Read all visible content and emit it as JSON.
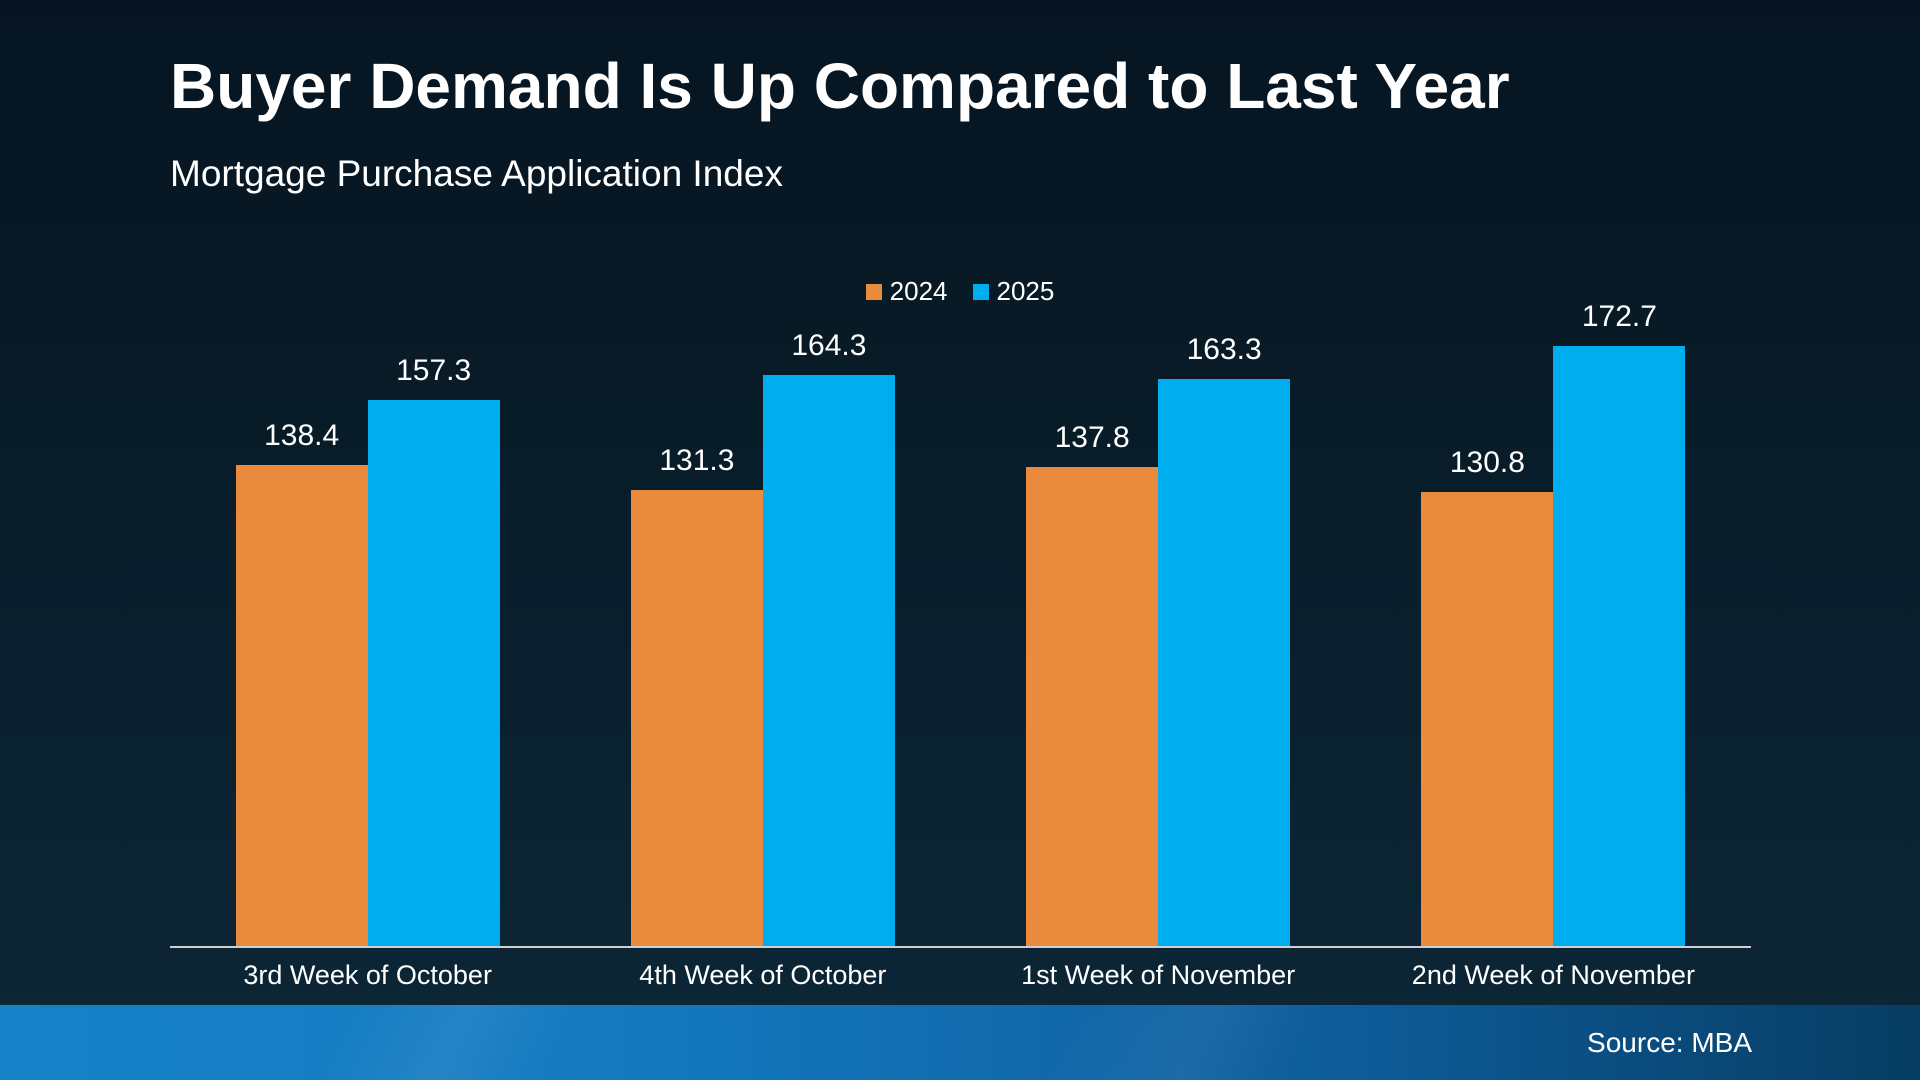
{
  "header": {
    "title": "Buyer Demand Is Up Compared to Last Year",
    "subtitle": "Mortgage Purchase Application Index"
  },
  "footer": {
    "source": "Source: MBA"
  },
  "colors": {
    "series_2024": "#E98A3C",
    "series_2025": "#00AEEF",
    "background_top": "#061521",
    "background_bottom": "#0D2736",
    "axis_line": "#CDD0D3",
    "text": "#FFFFFF",
    "band_left": "#1682C8",
    "band_right": "#073D63"
  },
  "chart_data": {
    "type": "bar",
    "title": "Buyer Demand Is Up Compared to Last Year",
    "subtitle": "Mortgage Purchase Application Index",
    "categories": [
      "3rd Week of October",
      "4th Week of October",
      "1st Week of November",
      "2nd Week of November"
    ],
    "series": [
      {
        "name": "2024",
        "color": "#E98A3C",
        "values": [
          138.4,
          131.3,
          137.8,
          130.8
        ]
      },
      {
        "name": "2025",
        "color": "#00AEEF",
        "values": [
          157.3,
          164.3,
          163.3,
          172.7
        ]
      }
    ],
    "ylim": [
      0,
      180
    ],
    "baseline": 0,
    "grid": false,
    "value_labels": true,
    "legend_position": "top-center",
    "source": "Source: MBA"
  }
}
